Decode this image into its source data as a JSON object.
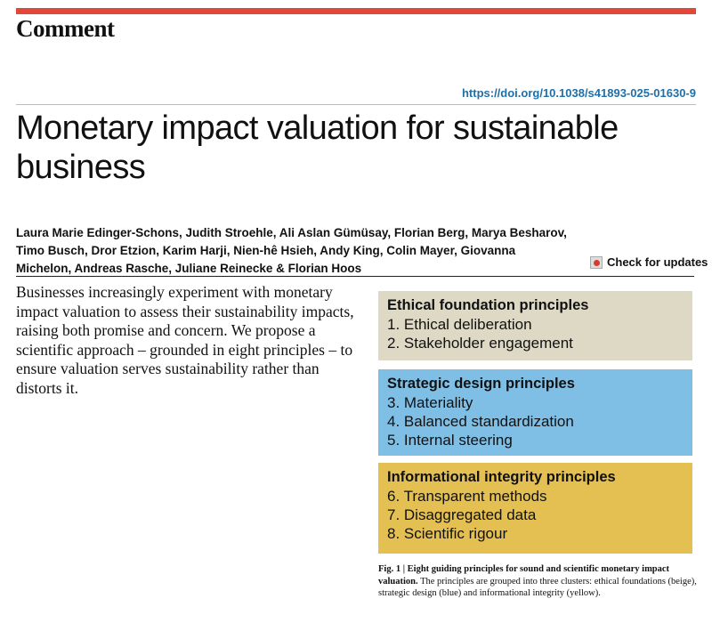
{
  "header": {
    "section": "Comment",
    "doi": "https://doi.org/10.1038/s41893-025-01630-9",
    "accent": "#e2483a"
  },
  "article": {
    "title": "Monetary impact valuation for sustainable business",
    "authors": "Laura Marie Edinger-Schons, Judith Stroehle, Ali Aslan Gümüsay, Florian Berg, Marya Besharov, Timo Busch, Dror Etzion, Karim Harji, Nien-hê Hsieh, Andy King, Colin Mayer, Giovanna Michelon, Andreas Rasche, Juliane Reinecke & Florian Hoos",
    "check_updates": "Check for updates",
    "abstract": "Businesses increasingly experiment with monetary impact valuation to assess their sustainability impacts, raising both promise and concern. We propose a scientific approach – grounded in eight principles – to ensure valuation serves sustainability rather than distorts it."
  },
  "figure": {
    "clusters": [
      {
        "title": "Ethical foundation principles",
        "color": "#ddd9c5",
        "items": [
          "1. Ethical deliberation",
          "2. Stakeholder engagement"
        ]
      },
      {
        "title": "Strategic design principles",
        "color": "#80bfe5",
        "items": [
          "3. Materiality",
          "4. Balanced standardization",
          "5. Internal steering"
        ]
      },
      {
        "title": "Informational integrity principles",
        "color": "#e4c052",
        "items": [
          "6. Transparent methods",
          "7. Disaggregated data",
          "8. Scientific rigour"
        ]
      }
    ],
    "caption_bold": "Fig. 1 | Eight guiding principles for sound and scientific monetary impact valuation.",
    "caption_text": " The principles are grouped into three clusters: ethical foundations (beige), strategic design (blue) and informational integrity (yellow)."
  }
}
